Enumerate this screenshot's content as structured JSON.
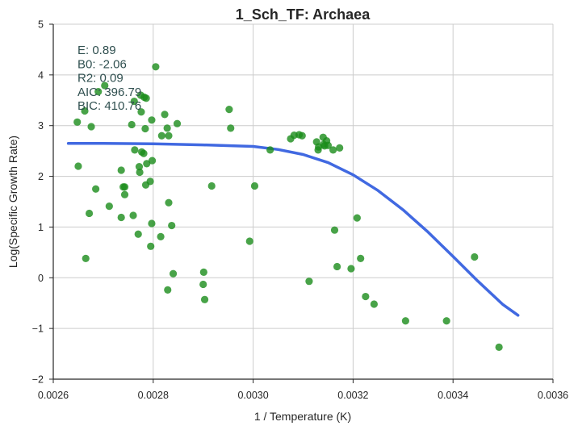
{
  "chart_data": {
    "type": "scatter",
    "title": "1_Sch_TF: Archaea",
    "xlabel": "1 / Temperature (K)",
    "ylabel": "Log(Specific Growth Rate)",
    "xlim": [
      0.0026,
      0.0036
    ],
    "ylim": [
      -2,
      5
    ],
    "xticks": [
      0.0026,
      0.0028,
      0.003,
      0.0032,
      0.0034,
      0.0036
    ],
    "xtick_labels": [
      "0.0026",
      "0.0028",
      "0.0030",
      "0.0032",
      "0.0034",
      "0.0036"
    ],
    "yticks": [
      -2,
      -1,
      0,
      1,
      2,
      3,
      4,
      5
    ],
    "ytick_labels": [
      "−2",
      "−1",
      "0",
      "1",
      "2",
      "3",
      "4",
      "5"
    ],
    "grid": true,
    "colors": {
      "points": "#1a8c1a",
      "fit_line": "#4169e1"
    },
    "stats": [
      "E:  0.89",
      "B0:  -2.06",
      "R2:  0.09",
      "AIC: 396.79",
      "BIC: 410.76"
    ],
    "points": [
      {
        "x": 0.002648,
        "y": 3.07
      },
      {
        "x": 0.002663,
        "y": 3.29
      },
      {
        "x": 0.002676,
        "y": 2.98
      },
      {
        "x": 0.00269,
        "y": 3.67
      },
      {
        "x": 0.002703,
        "y": 3.79
      },
      {
        "x": 0.00265,
        "y": 2.2
      },
      {
        "x": 0.002665,
        "y": 0.38
      },
      {
        "x": 0.002672,
        "y": 1.27
      },
      {
        "x": 0.002685,
        "y": 1.75
      },
      {
        "x": 0.002712,
        "y": 1.41
      },
      {
        "x": 0.002736,
        "y": 1.19
      },
      {
        "x": 0.00274,
        "y": 1.79
      },
      {
        "x": 0.002743,
        "y": 1.64
      },
      {
        "x": 0.002736,
        "y": 2.12
      },
      {
        "x": 0.002743,
        "y": 1.79
      },
      {
        "x": 0.002757,
        "y": 3.02
      },
      {
        "x": 0.002762,
        "y": 3.48
      },
      {
        "x": 0.002775,
        "y": 3.6
      },
      {
        "x": 0.002782,
        "y": 3.56
      },
      {
        "x": 0.002786,
        "y": 3.54
      },
      {
        "x": 0.002776,
        "y": 3.27
      },
      {
        "x": 0.002797,
        "y": 3.11
      },
      {
        "x": 0.002784,
        "y": 2.94
      },
      {
        "x": 0.002763,
        "y": 2.52
      },
      {
        "x": 0.002777,
        "y": 2.48
      },
      {
        "x": 0.002781,
        "y": 2.45
      },
      {
        "x": 0.002772,
        "y": 2.19
      },
      {
        "x": 0.002773,
        "y": 2.08
      },
      {
        "x": 0.002787,
        "y": 2.25
      },
      {
        "x": 0.002798,
        "y": 2.31
      },
      {
        "x": 0.002785,
        "y": 1.83
      },
      {
        "x": 0.002794,
        "y": 1.9
      },
      {
        "x": 0.002805,
        "y": 4.16
      },
      {
        "x": 0.002817,
        "y": 2.8
      },
      {
        "x": 0.002828,
        "y": 2.95
      },
      {
        "x": 0.002823,
        "y": 3.22
      },
      {
        "x": 0.002831,
        "y": 2.8
      },
      {
        "x": 0.002848,
        "y": 3.04
      },
      {
        "x": 0.00276,
        "y": 1.23
      },
      {
        "x": 0.002797,
        "y": 1.07
      },
      {
        "x": 0.00277,
        "y": 0.86
      },
      {
        "x": 0.002795,
        "y": 0.62
      },
      {
        "x": 0.002815,
        "y": 0.81
      },
      {
        "x": 0.002831,
        "y": 1.48
      },
      {
        "x": 0.002837,
        "y": 1.03
      },
      {
        "x": 0.00284,
        "y": 0.08
      },
      {
        "x": 0.002829,
        "y": -0.24
      },
      {
        "x": 0.002901,
        "y": 0.11
      },
      {
        "x": 0.0029,
        "y": -0.13
      },
      {
        "x": 0.002903,
        "y": -0.43
      },
      {
        "x": 0.002917,
        "y": 1.81
      },
      {
        "x": 0.002952,
        "y": 3.32
      },
      {
        "x": 0.002955,
        "y": 2.95
      },
      {
        "x": 0.002993,
        "y": 0.72
      },
      {
        "x": 0.003003,
        "y": 1.81
      },
      {
        "x": 0.003034,
        "y": 2.52
      },
      {
        "x": 0.003075,
        "y": 2.74
      },
      {
        "x": 0.003082,
        "y": 2.81
      },
      {
        "x": 0.003092,
        "y": 2.82
      },
      {
        "x": 0.003098,
        "y": 2.8
      },
      {
        "x": 0.003112,
        "y": -0.07
      },
      {
        "x": 0.003127,
        "y": 2.68
      },
      {
        "x": 0.003131,
        "y": 2.58
      },
      {
        "x": 0.00313,
        "y": 2.52
      },
      {
        "x": 0.00314,
        "y": 2.77
      },
      {
        "x": 0.003141,
        "y": 2.63
      },
      {
        "x": 0.003143,
        "y": 2.6
      },
      {
        "x": 0.003147,
        "y": 2.7
      },
      {
        "x": 0.00315,
        "y": 2.61
      },
      {
        "x": 0.00316,
        "y": 2.52
      },
      {
        "x": 0.003173,
        "y": 2.56
      },
      {
        "x": 0.003163,
        "y": 0.94
      },
      {
        "x": 0.003168,
        "y": 0.22
      },
      {
        "x": 0.003196,
        "y": 0.18
      },
      {
        "x": 0.003208,
        "y": 1.18
      },
      {
        "x": 0.003215,
        "y": 0.38
      },
      {
        "x": 0.003225,
        "y": -0.37
      },
      {
        "x": 0.003242,
        "y": -0.52
      },
      {
        "x": 0.003305,
        "y": -0.85
      },
      {
        "x": 0.003387,
        "y": -0.85
      },
      {
        "x": 0.003443,
        "y": 0.41
      },
      {
        "x": 0.003492,
        "y": -1.37
      }
    ],
    "fit_line": [
      {
        "x": 0.00263,
        "y": 2.65
      },
      {
        "x": 0.0027,
        "y": 2.65
      },
      {
        "x": 0.0028,
        "y": 2.64
      },
      {
        "x": 0.0029,
        "y": 2.62
      },
      {
        "x": 0.003,
        "y": 2.59
      },
      {
        "x": 0.00305,
        "y": 2.53
      },
      {
        "x": 0.0031,
        "y": 2.43
      },
      {
        "x": 0.00315,
        "y": 2.27
      },
      {
        "x": 0.0032,
        "y": 2.03
      },
      {
        "x": 0.00325,
        "y": 1.72
      },
      {
        "x": 0.0033,
        "y": 1.34
      },
      {
        "x": 0.00335,
        "y": 0.9
      },
      {
        "x": 0.0034,
        "y": 0.42
      },
      {
        "x": 0.00345,
        "y": -0.07
      },
      {
        "x": 0.0035,
        "y": -0.53
      },
      {
        "x": 0.00353,
        "y": -0.74
      }
    ]
  }
}
